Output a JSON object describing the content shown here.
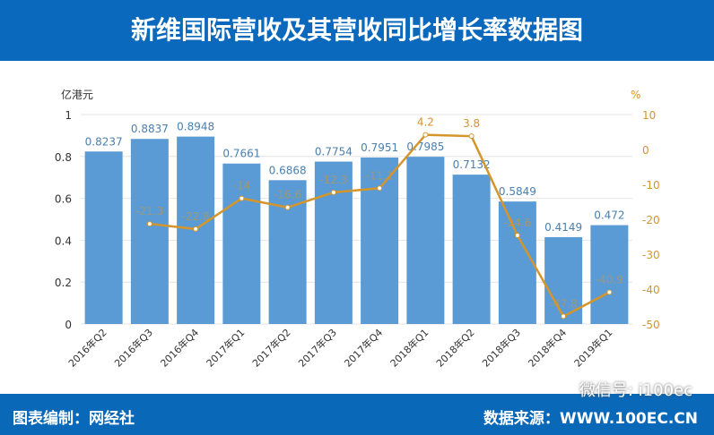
{
  "header": {
    "title": "新维国际营收及其营收同比增长率数据图"
  },
  "footer": {
    "credit": "图表编制：网经社",
    "source": "数据来源：WWW.100EC.CN",
    "wechat": "微信号: i100ec"
  },
  "colors": {
    "bar": "#5b9bd5",
    "line": "#d4952a",
    "header": "#0a69bd"
  },
  "chart_data": {
    "type": "bar+line",
    "title": "新维国际营收及其营收同比增长率数据图",
    "categories": [
      "2016年Q2",
      "2016年Q3",
      "2016年Q4",
      "2017年Q1",
      "2017年Q2",
      "2017年Q3",
      "2017年Q4",
      "2018年Q1",
      "2018年Q2",
      "2018年Q3",
      "2018年Q4",
      "2019年Q1"
    ],
    "series": [
      {
        "name": "营收",
        "axis": "left",
        "type": "bar",
        "values": [
          0.8237,
          0.8837,
          0.8948,
          0.7661,
          0.6868,
          0.7754,
          0.7951,
          0.7985,
          0.7132,
          0.5849,
          0.4149,
          0.472
        ]
      },
      {
        "name": "同比增长率",
        "axis": "right",
        "type": "line",
        "values": [
          null,
          -21.3,
          -22.8,
          -14,
          -16.6,
          -12.3,
          -11.1,
          4.2,
          3.8,
          -24.6,
          -47.8,
          -40.9
        ]
      }
    ],
    "ylabel": "亿港元",
    "ylim": [
      0,
      1
    ],
    "yticks": [
      "0",
      "0.2",
      "0.4",
      "0.6",
      "0.8",
      "1"
    ],
    "y2label": "%",
    "y2lim": [
      -50,
      10
    ],
    "y2ticks": [
      "-50",
      "-40",
      "-30",
      "-20",
      "-10",
      "0",
      "10"
    ]
  }
}
